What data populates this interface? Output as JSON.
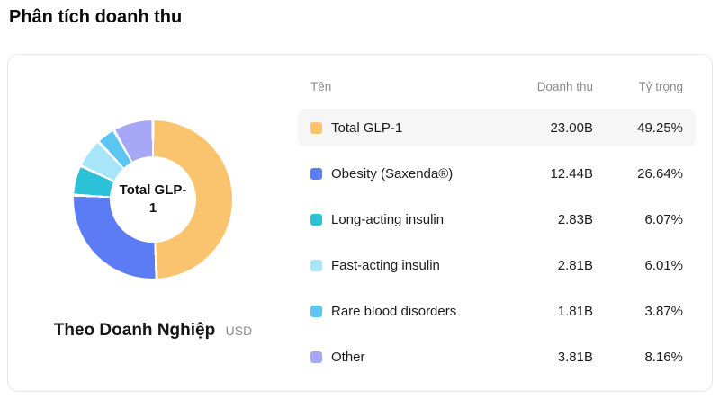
{
  "page": {
    "title": "Phân tích doanh thu"
  },
  "table": {
    "headers": [
      "Tên",
      "Doanh thu",
      "Tỷ trọng"
    ]
  },
  "chart_data": {
    "type": "pie",
    "subtype": "donut",
    "title": "Theo Doanh Nghiệp",
    "unit": "USD",
    "center_label": "Total GLP-1",
    "legend_position": "table-right",
    "items": [
      {
        "name": "Total GLP-1",
        "value": "23.00B",
        "percent": "49.25%",
        "percent_num": 49.25,
        "color": "#FAC36D",
        "highlighted": true
      },
      {
        "name": "Obesity (Saxenda®)",
        "value": "12.44B",
        "percent": "26.64%",
        "percent_num": 26.64,
        "color": "#5B7CF2",
        "highlighted": false
      },
      {
        "name": "Long-acting insulin",
        "value": "2.83B",
        "percent": "6.07%",
        "percent_num": 6.07,
        "color": "#2BC2D8",
        "highlighted": false
      },
      {
        "name": "Fast-acting insulin",
        "value": "2.81B",
        "percent": "6.01%",
        "percent_num": 6.01,
        "color": "#A8E5F8",
        "highlighted": false
      },
      {
        "name": "Rare blood disorders",
        "value": "1.81B",
        "percent": "3.87%",
        "percent_num": 3.87,
        "color": "#5CC6F2",
        "highlighted": false
      },
      {
        "name": "Other",
        "value": "3.81B",
        "percent": "8.16%",
        "percent_num": 8.16,
        "color": "#A7A7F8",
        "highlighted": false
      }
    ]
  }
}
